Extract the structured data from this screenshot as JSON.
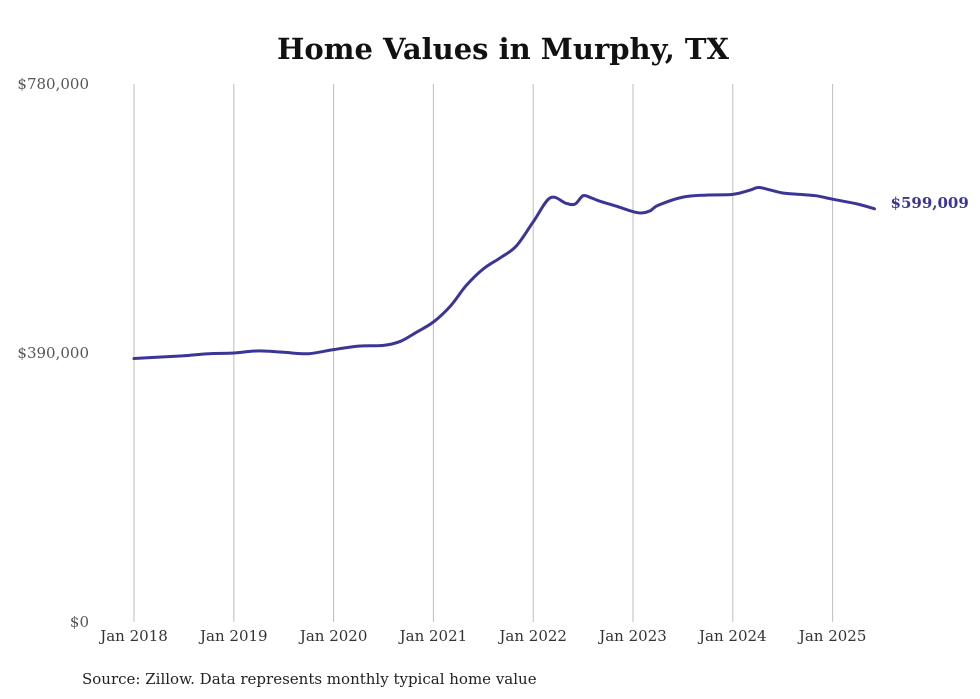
{
  "chart_data": {
    "type": "line",
    "title": "Home Values in Murphy, TX",
    "source": "Source: Zillow. Data represents monthly typical home value",
    "ylim": [
      0,
      780000
    ],
    "y_ticks": [
      {
        "value": 0,
        "label": "$0"
      },
      {
        "value": 390000,
        "label": "$390,000"
      },
      {
        "value": 780000,
        "label": "$780,000"
      }
    ],
    "x_ticks": [
      {
        "value": 2018.0,
        "label": "Jan 2018"
      },
      {
        "value": 2019.0,
        "label": "Jan 2019"
      },
      {
        "value": 2020.0,
        "label": "Jan 2020"
      },
      {
        "value": 2021.0,
        "label": "Jan 2021"
      },
      {
        "value": 2022.0,
        "label": "Jan 2022"
      },
      {
        "value": 2023.0,
        "label": "Jan 2023"
      },
      {
        "value": 2024.0,
        "label": "Jan 2024"
      },
      {
        "value": 2025.0,
        "label": "Jan 2025"
      }
    ],
    "xlim": [
      2018.0,
      2025.42
    ],
    "grid": "vertical",
    "end_label": "$599,009",
    "series": [
      {
        "color": "#3a3597",
        "x": [
          2018.0,
          2018.25,
          2018.5,
          2018.75,
          2019.0,
          2019.25,
          2019.5,
          2019.75,
          2020.0,
          2020.25,
          2020.5,
          2020.67,
          2020.83,
          2021.0,
          2021.17,
          2021.33,
          2021.5,
          2021.67,
          2021.83,
          2022.0,
          2022.17,
          2022.33,
          2022.42,
          2022.5,
          2022.58,
          2022.67,
          2022.83,
          2023.0,
          2023.08,
          2023.17,
          2023.25,
          2023.5,
          2023.75,
          2024.0,
          2024.17,
          2024.25,
          2024.33,
          2024.5,
          2024.67,
          2024.83,
          2025.0,
          2025.25,
          2025.42
        ],
        "y": [
          382000,
          384000,
          386000,
          389000,
          390000,
          393000,
          391000,
          389000,
          395000,
          400000,
          401000,
          407000,
          420000,
          435000,
          458000,
          488000,
          512000,
          528000,
          545000,
          580000,
          615000,
          607000,
          606000,
          618000,
          615000,
          610000,
          603000,
          595000,
          593000,
          596000,
          604000,
          616000,
          619000,
          620000,
          626000,
          630000,
          628000,
          622000,
          620000,
          618000,
          613000,
          606000,
          599009
        ]
      }
    ]
  }
}
